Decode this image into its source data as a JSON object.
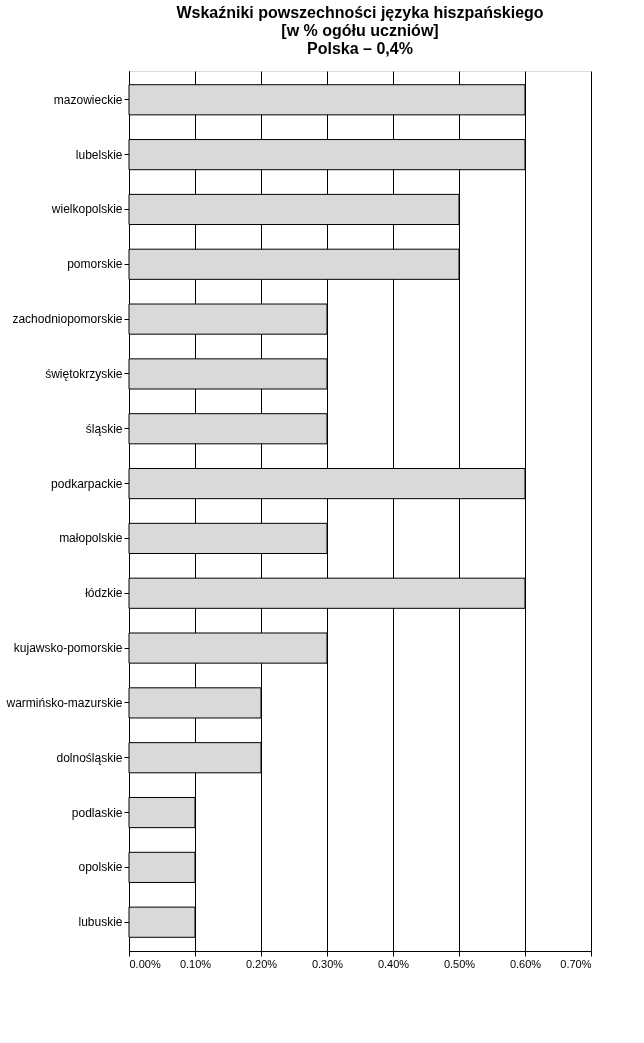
{
  "chart_data": {
    "type": "bar",
    "orientation": "horizontal",
    "title": "Wskaźniki powszechności języka hiszpańskiego\n[w % ogółu uczniów]\nPolska – 0,4%",
    "categories": [
      "mazowieckie",
      "lubelskie",
      "wielkopolskie",
      "pomorskie",
      "zachodniopomorskie",
      "świętokrzyskie",
      "śląskie",
      "podkarpackie",
      "małopolskie",
      "łódzkie",
      "kujawsko-pomorskie",
      "warmińsko-mazurskie",
      "dolnośląskie",
      "podlaskie",
      "opolskie",
      "lubuskie"
    ],
    "values": [
      0.6,
      0.6,
      0.5,
      0.5,
      0.3,
      0.3,
      0.3,
      0.6,
      0.3,
      0.6,
      0.3,
      0.2,
      0.2,
      0.1,
      0.1,
      0.1
    ],
    "color": "#d9d9d9",
    "xlim": [
      0,
      0.7
    ],
    "xticks": [
      {
        "value": 0,
        "label": "0.00%"
      },
      {
        "value": 0.1,
        "label": "0.10%"
      },
      {
        "value": 0.2,
        "label": "0.20%"
      },
      {
        "value": 0.3,
        "label": "0.30%"
      },
      {
        "value": 0.4,
        "label": "0.40%"
      },
      {
        "value": 0.5,
        "label": "0.50%"
      },
      {
        "value": 0.6,
        "label": "0.60%"
      },
      {
        "value": 0.7,
        "label": "0.70%"
      }
    ],
    "grid": "x"
  }
}
